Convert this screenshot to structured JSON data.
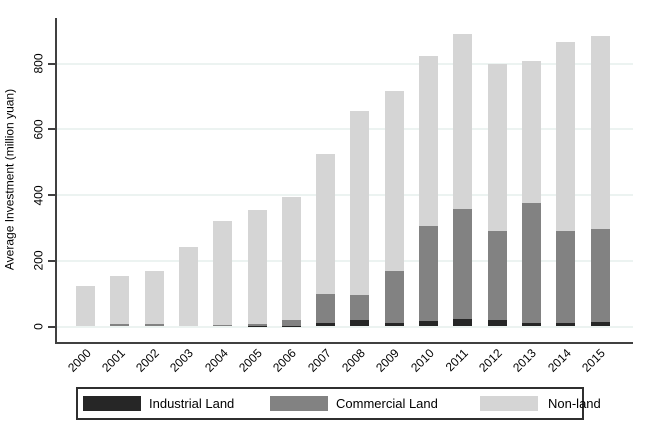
{
  "chart_data": {
    "type": "bar",
    "stacked": true,
    "title": "",
    "xlabel": "",
    "ylabel": "Average Investment (million yuan)",
    "categories": [
      "2000",
      "2001",
      "2002",
      "2003",
      "2004",
      "2005",
      "2006",
      "2007",
      "2008",
      "2009",
      "2010",
      "2011",
      "2012",
      "2013",
      "2014",
      "2015"
    ],
    "series": [
      {
        "name": "Industrial Land",
        "color": "#262626",
        "values": [
          0,
          0,
          0,
          0,
          0,
          2,
          3,
          10,
          19,
          12,
          16,
          23,
          21,
          12,
          10,
          15
        ]
      },
      {
        "name": "Commercial Land",
        "color": "#828282",
        "values": [
          0,
          8,
          8,
          0,
          6,
          6,
          18,
          90,
          76,
          156,
          291,
          333,
          269,
          364,
          282,
          281
        ]
      },
      {
        "name": "Non-land",
        "color": "#d5d5d5",
        "values": [
          122,
          147,
          161,
          242,
          315,
          347,
          374,
          424,
          560,
          547,
          517,
          534,
          510,
          431,
          575,
          589
        ]
      }
    ],
    "totals": [
      122,
      155,
      169,
      242,
      321,
      355,
      395,
      524,
      655,
      715,
      824,
      890,
      800,
      807,
      867,
      885
    ],
    "y_ticks": [
      0,
      200,
      400,
      600,
      800
    ],
    "y_tick_labels": [
      "0",
      "200",
      "400",
      "600",
      "800"
    ],
    "ylim": [
      0,
      938
    ],
    "grid": true,
    "legend_position": "bottom",
    "colors": {
      "axis_line": "#404040",
      "gridline": "#ecf3f1",
      "text": "#000000",
      "background": "#ffffff"
    }
  }
}
